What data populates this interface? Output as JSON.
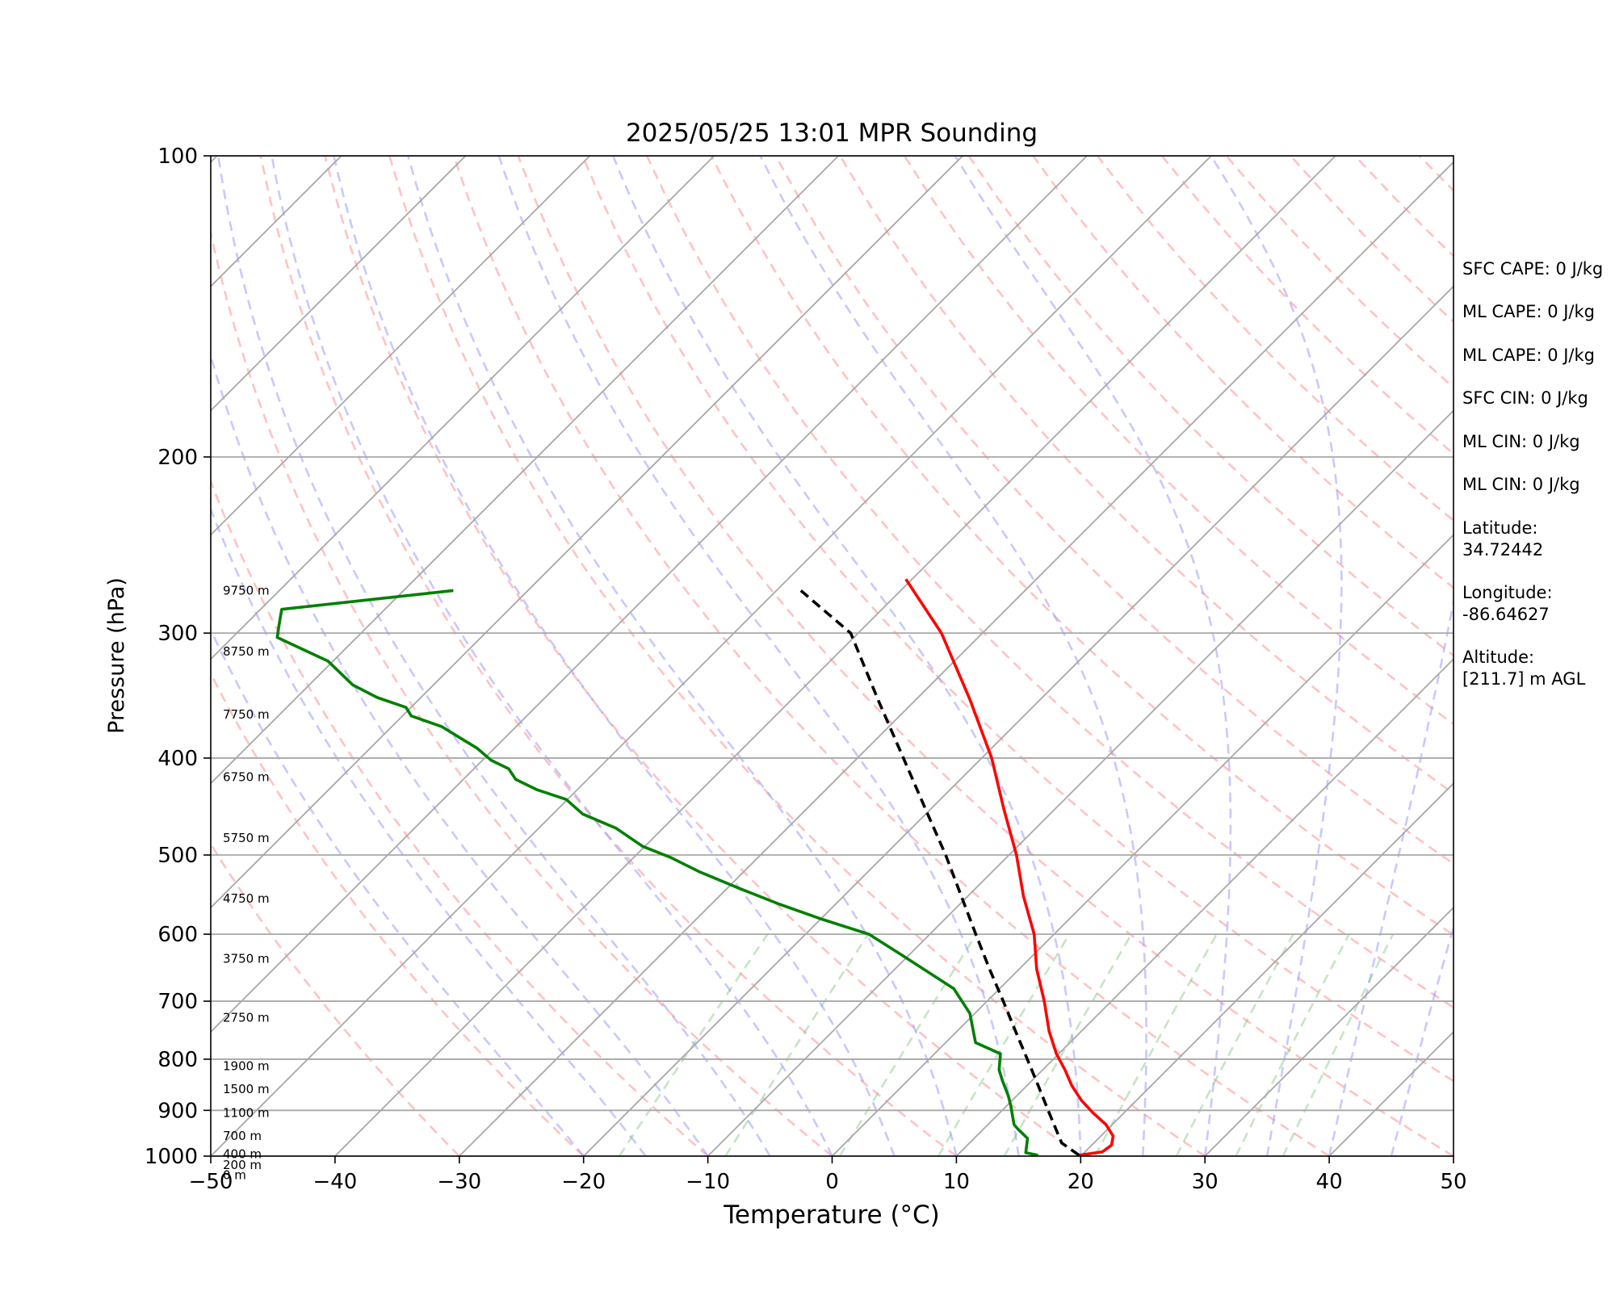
{
  "chart_data": {
    "type": "line",
    "title": "2025/05/25 13:01 MPR Sounding",
    "xlabel": "Temperature (°C)",
    "ylabel": "Pressure (hPa)",
    "xlim": [
      -50,
      50
    ],
    "ylim": [
      1000,
      100
    ],
    "y_scale": "log",
    "skew": true,
    "grid": true,
    "x_ticks": [
      "−50",
      "−40",
      "−30",
      "−20",
      "−10",
      "0",
      "10",
      "20",
      "30",
      "40",
      "50"
    ],
    "y_ticks": [
      {
        "p": 100,
        "label": "100"
      },
      {
        "p": 200,
        "label": "200"
      },
      {
        "p": 300,
        "label": "300"
      },
      {
        "p": 400,
        "label": "400"
      },
      {
        "p": 500,
        "label": "500"
      },
      {
        "p": 600,
        "label": "600"
      },
      {
        "p": 700,
        "label": "700"
      },
      {
        "p": 800,
        "label": "800"
      },
      {
        "p": 900,
        "label": "900"
      },
      {
        "p": 1000,
        "label": "1000"
      }
    ],
    "height_labels": [
      {
        "label": "9750 m",
        "p": 272
      },
      {
        "label": "8750 m",
        "p": 313
      },
      {
        "label": "7750 m",
        "p": 362
      },
      {
        "label": "6750 m",
        "p": 418
      },
      {
        "label": "5750 m",
        "p": 481
      },
      {
        "label": "4750 m",
        "p": 553
      },
      {
        "label": "3750 m",
        "p": 635
      },
      {
        "label": "2750 m",
        "p": 727
      },
      {
        "label": "1900 m",
        "p": 813
      },
      {
        "label": "1500 m",
        "p": 857
      },
      {
        "label": "1100 m",
        "p": 905
      },
      {
        "label": "700 m",
        "p": 955
      },
      {
        "label": "400 m",
        "p": 995
      },
      {
        "label": "200 m",
        "p": 1021
      },
      {
        "label": "0 m",
        "p": 1045
      }
    ],
    "series": [
      {
        "color": "#ff0000",
        "style": "solid",
        "points": [
          {
            "t": 19.8,
            "p": 998
          },
          {
            "t": 21.4,
            "p": 990
          },
          {
            "t": 21.6,
            "p": 975
          },
          {
            "t": 21.0,
            "p": 955
          },
          {
            "t": 19.5,
            "p": 930
          },
          {
            "t": 17.5,
            "p": 905
          },
          {
            "t": 15.6,
            "p": 880
          },
          {
            "t": 13.6,
            "p": 850
          },
          {
            "t": 11.8,
            "p": 820
          },
          {
            "t": 9.8,
            "p": 790
          },
          {
            "t": 7.4,
            "p": 750
          },
          {
            "t": 4.6,
            "p": 700
          },
          {
            "t": 1.4,
            "p": 650
          },
          {
            "t": -1.6,
            "p": 600
          },
          {
            "t": -5.5,
            "p": 550
          },
          {
            "t": -9.4,
            "p": 500
          },
          {
            "t": -14.1,
            "p": 450
          },
          {
            "t": -19.2,
            "p": 400
          },
          {
            "t": -25.6,
            "p": 350
          },
          {
            "t": -33.3,
            "p": 300
          },
          {
            "t": -40.5,
            "p": 265
          }
        ]
      },
      {
        "color": "#008000",
        "style": "solid",
        "points": [
          {
            "t": 16.5,
            "p": 998
          },
          {
            "t": 15.3,
            "p": 992
          },
          {
            "t": 14.3,
            "p": 960
          },
          {
            "t": 12.8,
            "p": 940
          },
          {
            "t": 12.1,
            "p": 930
          },
          {
            "t": 10.3,
            "p": 890
          },
          {
            "t": 9.3,
            "p": 870
          },
          {
            "t": 7.6,
            "p": 840
          },
          {
            "t": 6.5,
            "p": 820
          },
          {
            "t": 5.3,
            "p": 790
          },
          {
            "t": 2.4,
            "p": 770
          },
          {
            "t": -0.4,
            "p": 720
          },
          {
            "t": -3.7,
            "p": 680
          },
          {
            "t": -10.5,
            "p": 630
          },
          {
            "t": -14.9,
            "p": 600
          },
          {
            "t": -19.8,
            "p": 580
          },
          {
            "t": -24.5,
            "p": 560
          },
          {
            "t": -29.0,
            "p": 540
          },
          {
            "t": -33.5,
            "p": 520
          },
          {
            "t": -37.0,
            "p": 503
          },
          {
            "t": -40.2,
            "p": 490
          },
          {
            "t": -43.8,
            "p": 470
          },
          {
            "t": -47.6,
            "p": 455
          },
          {
            "t": -50.1,
            "p": 440
          },
          {
            "t": -53.3,
            "p": 430
          },
          {
            "t": -55.8,
            "p": 420
          },
          {
            "t": -57.2,
            "p": 410
          },
          {
            "t": -59.3,
            "p": 402
          },
          {
            "t": -61.4,
            "p": 391
          },
          {
            "t": -63.8,
            "p": 381
          },
          {
            "t": -66.0,
            "p": 372
          },
          {
            "t": -69.3,
            "p": 363
          },
          {
            "t": -70.4,
            "p": 356
          },
          {
            "t": -73.5,
            "p": 348
          },
          {
            "t": -76.5,
            "p": 338
          },
          {
            "t": -80.4,
            "p": 320
          },
          {
            "t": -83.9,
            "p": 310
          },
          {
            "t": -86.4,
            "p": 303
          },
          {
            "t": -87.4,
            "p": 293
          },
          {
            "t": -88.3,
            "p": 284
          },
          {
            "t": -76.0,
            "p": 272
          }
        ]
      },
      {
        "color": "#000000",
        "style": "dashed",
        "points": [
          {
            "t": 19.8,
            "p": 998
          },
          {
            "t": 17.4,
            "p": 970
          },
          {
            "t": 13.7,
            "p": 900
          },
          {
            "t": 10.9,
            "p": 850
          },
          {
            "t": 7.9,
            "p": 800
          },
          {
            "t": 4.7,
            "p": 750
          },
          {
            "t": 1.3,
            "p": 700
          },
          {
            "t": -2.4,
            "p": 650
          },
          {
            "t": -6.3,
            "p": 600
          },
          {
            "t": -10.5,
            "p": 550
          },
          {
            "t": -15.1,
            "p": 500
          },
          {
            "t": -20.4,
            "p": 450
          },
          {
            "t": -26.3,
            "p": 400
          },
          {
            "t": -33.0,
            "p": 350
          },
          {
            "t": -40.6,
            "p": 300
          },
          {
            "t": -48.6,
            "p": 270
          }
        ]
      }
    ]
  },
  "info_panel": [
    {
      "text": "SFC CAPE: 0 J/kg"
    },
    {
      "text": "ML CAPE: 0 J/kg"
    },
    {
      "text": "ML CAPE: 0 J/kg"
    },
    {
      "text": "SFC CIN: 0 J/kg"
    },
    {
      "text": "ML CIN: 0 J/kg"
    },
    {
      "text": "ML CIN: 0 J/kg"
    },
    {
      "text": "Latitude:",
      "text2": "34.72442"
    },
    {
      "text": "Longitude:",
      "text2": "-86.64627"
    },
    {
      "text": "Altitude:",
      "text2": "[211.7] m AGL"
    }
  ]
}
